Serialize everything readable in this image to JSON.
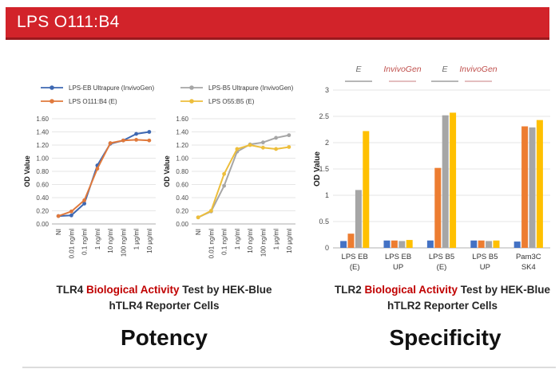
{
  "banner": {
    "title": "LPS O111:B4",
    "bg_color": "#D2232A",
    "text_color": "#FFFFFF"
  },
  "chart_data": [
    {
      "id": "tlr4-potency-left",
      "type": "line",
      "categories": [
        "NI",
        "0.01 ng/ml",
        "0.1 ng/ml",
        "1 ng/ml",
        "10 ng/ml",
        "100 ng/ml",
        "1 μg/ml",
        "10 μg/ml"
      ],
      "series": [
        {
          "name": "LPS-EB Ultrapure (InvivoGen)",
          "color": "#3E68B2",
          "marker": "circle",
          "values": [
            0.12,
            0.13,
            0.31,
            0.89,
            1.22,
            1.27,
            1.37,
            1.4
          ]
        },
        {
          "name": "LPS O111:B4 (E)",
          "color": "#E0793C",
          "marker": "circle",
          "values": [
            0.12,
            0.19,
            0.36,
            0.84,
            1.23,
            1.27,
            1.28,
            1.27
          ]
        }
      ],
      "xlabel": "",
      "ylabel": "OD Value",
      "ylim": [
        0,
        1.6
      ],
      "ytick_step": 0.2,
      "ytick_decimals": 2,
      "grid": true,
      "legend_position": "top"
    },
    {
      "id": "tlr4-potency-right",
      "type": "line",
      "categories": [
        "NI",
        "0.01 ng/ml",
        "0.1 ng/ml",
        "1 ng/ml",
        "10 ng/ml",
        "100 ng/ml",
        "1 μg/ml",
        "10 μg/ml"
      ],
      "series": [
        {
          "name": "LPS-B5 Ultrapure (InvivoGen)",
          "color": "#A6A6A6",
          "marker": "circle",
          "values": [
            0.1,
            0.19,
            0.58,
            1.1,
            1.21,
            1.24,
            1.31,
            1.35
          ]
        },
        {
          "name": "LPS O55:B5 (E)",
          "color": "#EDBE3B",
          "marker": "circle",
          "values": [
            0.1,
            0.2,
            0.76,
            1.14,
            1.2,
            1.16,
            1.14,
            1.17
          ]
        }
      ],
      "xlabel": "",
      "ylabel": "OD Value",
      "ylim": [
        0,
        1.6
      ],
      "ytick_step": 0.2,
      "ytick_decimals": 2,
      "grid": true,
      "legend_position": "top"
    },
    {
      "id": "tlr2-specificity",
      "type": "bar",
      "categories": [
        "LPS EB (E)",
        "LPS EB UP",
        "LPS B5 (E)",
        "LPS B5 UP",
        "Pam3C SK4"
      ],
      "category_lines": [
        [
          "LPS EB",
          "(E)"
        ],
        [
          "LPS EB",
          "UP"
        ],
        [
          "LPS B5",
          "(E)"
        ],
        [
          "LPS B5",
          "UP"
        ],
        [
          "Pam3C",
          "SK4"
        ]
      ],
      "series": [
        {
          "name": "series-blue",
          "color": "#4472C4",
          "values": [
            0.13,
            0.14,
            0.14,
            0.14,
            0.12
          ]
        },
        {
          "name": "series-orange",
          "color": "#ED7D31",
          "values": [
            0.27,
            0.14,
            1.52,
            0.14,
            2.31
          ]
        },
        {
          "name": "series-gray",
          "color": "#A6A6A6",
          "values": [
            1.1,
            0.13,
            2.52,
            0.13,
            2.29
          ]
        },
        {
          "name": "series-yellow",
          "color": "#FFC000",
          "values": [
            2.22,
            0.15,
            2.57,
            0.14,
            2.43
          ]
        }
      ],
      "xlabel": "",
      "ylabel": "OD Value",
      "ylim": [
        0,
        3
      ],
      "ytick_labels": [
        "0",
        "0.5",
        "1",
        "1.5",
        "2",
        "2.5",
        "3"
      ],
      "grid": true,
      "annotations": [
        {
          "label": "E",
          "text_color": "#6E6E6E",
          "line_color": "#8C8C8C",
          "x": 56
        },
        {
          "label": "InvivoGen",
          "text_color": "#C0504D",
          "line_color": "#D49699",
          "x": 111
        },
        {
          "label": "E",
          "text_color": "#6E6E6E",
          "line_color": "#8C8C8C",
          "x": 164
        },
        {
          "label": "InvivoGen",
          "text_color": "#C0504D",
          "line_color": "#D49699",
          "x": 206
        }
      ]
    }
  ],
  "captions": {
    "left": {
      "prefix": "TLR4 ",
      "highlight": "Biological Activity",
      "suffix": " Test by HEK-Blue hTLR4 Reporter Cells",
      "highlight_color": "#C00000"
    },
    "right": {
      "prefix": "TLR2 ",
      "highlight": "Biological Activity",
      "suffix": " Test by HEK-Blue hTLR2 Reporter Cells",
      "highlight_color": "#C00000"
    }
  },
  "section_labels": {
    "left": "Potency",
    "right": "Specificity"
  }
}
